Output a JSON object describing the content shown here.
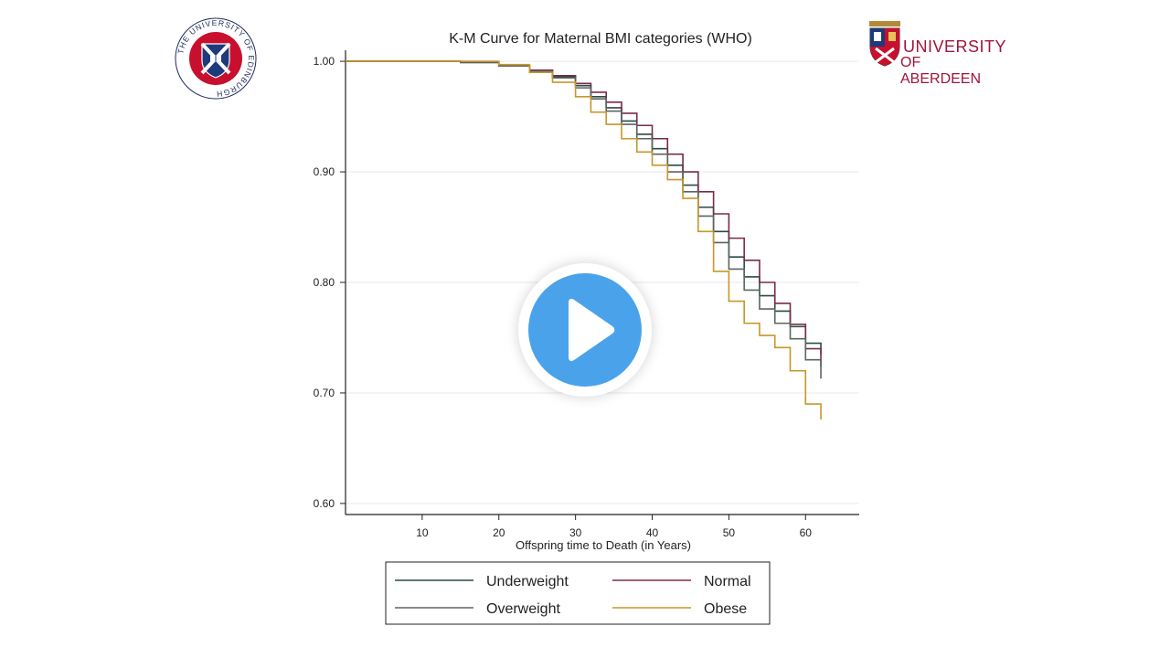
{
  "chart_data": {
    "type": "line",
    "title": "K-M Curve for Maternal BMI categories (WHO)",
    "xlabel": "Offspring time to Death (in Years)",
    "ylabel": "",
    "xlim": [
      0,
      67
    ],
    "ylim": [
      0.59,
      1.01
    ],
    "xticks": [
      10,
      20,
      30,
      40,
      50,
      60
    ],
    "yticks": [
      0.6,
      0.7,
      0.8,
      0.9,
      1.0
    ],
    "ytick_labels": [
      "0.60",
      "0.70",
      "0.80",
      "0.90",
      "1.00"
    ],
    "grid": true,
    "step": true,
    "series": [
      {
        "name": "Underweight",
        "color": "#2b4a48",
        "x": [
          0,
          15,
          20,
          24,
          27,
          30,
          32,
          34,
          36,
          38,
          40,
          42,
          44,
          46,
          48,
          50,
          52,
          54,
          56,
          58,
          60,
          62
        ],
        "y": [
          1.0,
          0.999,
          0.996,
          0.992,
          0.986,
          0.978,
          0.968,
          0.958,
          0.946,
          0.934,
          0.921,
          0.906,
          0.888,
          0.868,
          0.846,
          0.823,
          0.805,
          0.788,
          0.774,
          0.76,
          0.745,
          0.735
        ]
      },
      {
        "name": "Normal",
        "color": "#7a2b4a",
        "x": [
          0,
          15,
          20,
          24,
          27,
          30,
          32,
          34,
          36,
          38,
          40,
          42,
          44,
          46,
          48,
          50,
          52,
          54,
          56,
          58,
          60,
          62
        ],
        "y": [
          1.0,
          0.999,
          0.996,
          0.992,
          0.987,
          0.98,
          0.972,
          0.963,
          0.953,
          0.942,
          0.93,
          0.916,
          0.9,
          0.882,
          0.862,
          0.84,
          0.82,
          0.8,
          0.781,
          0.762,
          0.74,
          0.724
        ]
      },
      {
        "name": "Overweight",
        "color": "#5a6660",
        "x": [
          0,
          15,
          20,
          24,
          27,
          30,
          32,
          34,
          36,
          38,
          40,
          42,
          44,
          46,
          48,
          50,
          52,
          54,
          56,
          58,
          60,
          62
        ],
        "y": [
          1.0,
          0.999,
          0.996,
          0.991,
          0.985,
          0.976,
          0.966,
          0.955,
          0.943,
          0.93,
          0.916,
          0.9,
          0.882,
          0.86,
          0.836,
          0.812,
          0.793,
          0.776,
          0.763,
          0.749,
          0.73,
          0.713
        ]
      },
      {
        "name": "Obese",
        "color": "#c8962a",
        "x": [
          0,
          15,
          20,
          24,
          27,
          30,
          32,
          34,
          36,
          38,
          40,
          42,
          44,
          46,
          48,
          50,
          52,
          54,
          56,
          58,
          60,
          62
        ],
        "y": [
          1.0,
          1.0,
          0.997,
          0.99,
          0.981,
          0.968,
          0.954,
          0.943,
          0.93,
          0.918,
          0.906,
          0.893,
          0.876,
          0.846,
          0.81,
          0.783,
          0.763,
          0.752,
          0.741,
          0.72,
          0.69,
          0.676
        ]
      }
    ]
  },
  "logos": {
    "edinburgh": "THE UNIVERSITY OF EDINBURGH",
    "aberdeen_line1": "UNIVERSITY",
    "aberdeen_line2": "OF ABERDEEN"
  },
  "video": {
    "play_icon": "play-icon",
    "accent_color": "#4aa3ea"
  }
}
